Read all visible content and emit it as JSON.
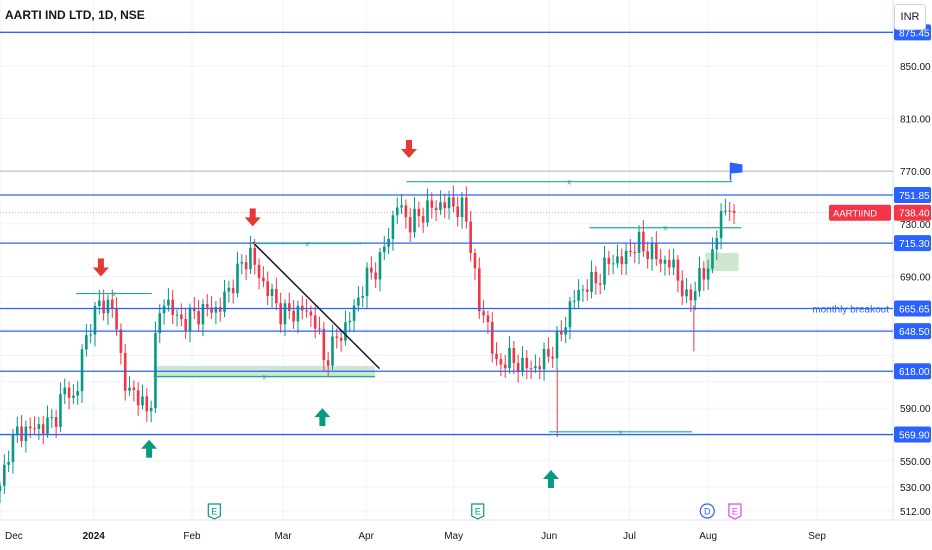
{
  "header": {
    "title": "AARTI IND LTD, 1D, NSE",
    "currency": "INR"
  },
  "chart_data": {
    "type": "candlestick",
    "symbol": "AARTIIND",
    "ylim": [
      505,
      900
    ],
    "y_ticks": [
      512,
      530,
      550,
      570,
      590,
      610,
      630,
      650,
      670,
      690,
      730,
      770,
      810,
      850
    ],
    "y_tick_labels": [
      "512.00",
      "530.00",
      "550.00",
      "",
      "590.00",
      "",
      "",
      "",
      "",
      "690.00",
      "730.00",
      "770.00",
      "810.00",
      "850.00"
    ],
    "x_ticks": [
      {
        "label": "Dec",
        "t": 0,
        "bold": false
      },
      {
        "label": "2024",
        "t": 0.105,
        "bold": true
      },
      {
        "label": "Feb",
        "t": 0.215,
        "bold": false
      },
      {
        "label": "Mar",
        "t": 0.317,
        "bold": false
      },
      {
        "label": "Apr",
        "t": 0.41,
        "bold": false
      },
      {
        "label": "May",
        "t": 0.508,
        "bold": false
      },
      {
        "label": "Jun",
        "t": 0.615,
        "bold": false
      },
      {
        "label": "Jul",
        "t": 0.705,
        "bold": false
      },
      {
        "label": "Aug",
        "t": 0.793,
        "bold": false
      },
      {
        "label": "Sep",
        "t": 0.915,
        "bold": false
      }
    ],
    "price_lines": [
      {
        "value": 875.45,
        "label": "875.45",
        "color": "#2962ff"
      },
      {
        "value": 751.85,
        "label": "751.85",
        "color": "#2962ff"
      },
      {
        "value": 715.3,
        "label": "715.30",
        "color": "#2962ff"
      },
      {
        "value": 665.65,
        "label": "665.65",
        "color": "#2962ff"
      },
      {
        "value": 648.5,
        "label": "648.50",
        "color": "#2962ff"
      },
      {
        "value": 618.0,
        "label": "618.00",
        "color": "#2962ff"
      },
      {
        "value": 569.9,
        "label": "569.90",
        "color": "#2962ff"
      }
    ],
    "last_price": {
      "value": 738.4,
      "label": "738.40",
      "symbol_label": "AARTIIND",
      "color": "#f23645"
    },
    "annotation": {
      "text": "monthly breakout",
      "value": 665.65
    },
    "events": [
      {
        "t": 0.24,
        "label": "E",
        "color": "#089981"
      },
      {
        "t": 0.535,
        "label": "E",
        "color": "#089981"
      },
      {
        "t": 0.792,
        "label": "D",
        "color": "#2962ff"
      },
      {
        "t": 0.823,
        "label": "E",
        "color": "#e040fb"
      }
    ],
    "arrows_down": [
      {
        "t": 0.113,
        "value": 690
      },
      {
        "t": 0.283,
        "value": 728
      },
      {
        "t": 0.458,
        "value": 780
      }
    ],
    "arrows_up": [
      {
        "t": 0.167,
        "value": 566
      },
      {
        "t": 0.361,
        "value": 590
      },
      {
        "t": 0.617,
        "value": 543
      }
    ],
    "waypoints": [
      [
        0.0,
        527
      ],
      [
        0.01,
        560
      ],
      [
        0.02,
        572
      ],
      [
        0.035,
        574
      ],
      [
        0.05,
        577
      ],
      [
        0.06,
        580
      ],
      [
        0.07,
        600
      ],
      [
        0.08,
        606
      ],
      [
        0.085,
        585
      ],
      [
        0.09,
        630
      ],
      [
        0.105,
        660
      ],
      [
        0.115,
        673
      ],
      [
        0.13,
        658
      ],
      [
        0.14,
        605
      ],
      [
        0.155,
        600
      ],
      [
        0.167,
        580
      ],
      [
        0.175,
        650
      ],
      [
        0.185,
        675
      ],
      [
        0.2,
        655
      ],
      [
        0.215,
        660
      ],
      [
        0.23,
        665
      ],
      [
        0.245,
        665
      ],
      [
        0.26,
        685
      ],
      [
        0.272,
        700
      ],
      [
        0.28,
        708
      ],
      [
        0.29,
        690
      ],
      [
        0.3,
        680
      ],
      [
        0.315,
        662
      ],
      [
        0.325,
        662
      ],
      [
        0.34,
        665
      ],
      [
        0.355,
        655
      ],
      [
        0.362,
        625
      ],
      [
        0.375,
        640
      ],
      [
        0.39,
        655
      ],
      [
        0.41,
        688
      ],
      [
        0.425,
        700
      ],
      [
        0.445,
        745
      ],
      [
        0.46,
        730
      ],
      [
        0.475,
        740
      ],
      [
        0.495,
        745
      ],
      [
        0.505,
        745
      ],
      [
        0.52,
        740
      ],
      [
        0.53,
        705
      ],
      [
        0.535,
        665
      ],
      [
        0.545,
        660
      ],
      [
        0.555,
        620
      ],
      [
        0.565,
        628
      ],
      [
        0.58,
        624
      ],
      [
        0.595,
        620
      ],
      [
        0.605,
        624
      ],
      [
        0.615,
        632
      ],
      [
        0.625,
        640
      ],
      [
        0.64,
        670
      ],
      [
        0.65,
        680
      ],
      [
        0.665,
        686
      ],
      [
        0.675,
        693
      ],
      [
        0.685,
        705
      ],
      [
        0.695,
        700
      ],
      [
        0.705,
        710
      ],
      [
        0.715,
        715
      ],
      [
        0.725,
        710
      ],
      [
        0.735,
        705
      ],
      [
        0.745,
        700
      ],
      [
        0.755,
        698
      ],
      [
        0.77,
        668
      ],
      [
        0.78,
        688
      ],
      [
        0.79,
        690
      ],
      [
        0.8,
        715
      ],
      [
        0.81,
        740
      ],
      [
        0.815,
        748
      ],
      [
        0.822,
        738.4
      ]
    ]
  }
}
